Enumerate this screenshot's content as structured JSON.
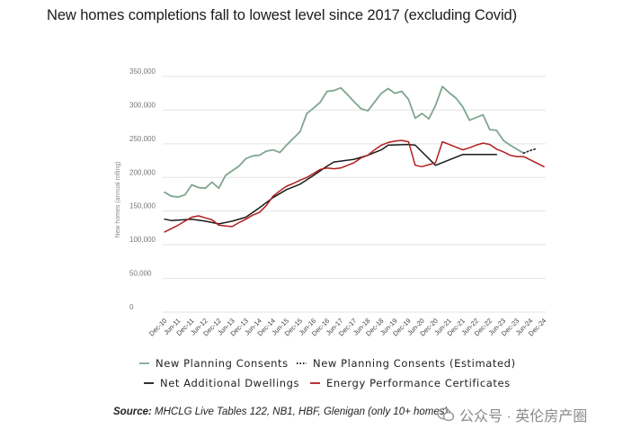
{
  "title": "New homes completions fall to lowest level since 2017 (excluding Covid)",
  "source": {
    "label": "Source:",
    "text": "MHCLG Live Tables 122, NB1, HBF, Glenigan (only 10+ homes)"
  },
  "watermark": "公众号 · 英伦房产圈",
  "colors": {
    "planning": "#7fa68f",
    "estimated": "#222222",
    "dwellings": "#1a1a1a",
    "epc": "#b01e1e",
    "grid": "#e3e3e3"
  },
  "chart_data": {
    "type": "line",
    "ylabel": "New homes (annual rolling)",
    "ylim": [
      0,
      350000
    ],
    "yticks": [
      "0",
      "50,000",
      "100,000",
      "150,000",
      "200,000",
      "250,000",
      "300,000",
      "350,000"
    ],
    "x_labels": [
      "Dec-10",
      "Jun-11",
      "Dec-11",
      "Jun-12",
      "Dec-12",
      "Jun-13",
      "Dec-13",
      "Jun-14",
      "Dec-14",
      "Jun-15",
      "Dec-15",
      "Jun-16",
      "Dec-16",
      "Jun-17",
      "Dec-17",
      "Jun-18",
      "Dec-18",
      "Jun-19",
      "Dec-19",
      "Jun-20",
      "Dec-20",
      "Jun-21",
      "Dec-21",
      "Jun-22",
      "Dec-22",
      "Jun-23",
      "Dec-23",
      "Jun-24",
      "Dec-24"
    ],
    "x_start": 2010.917,
    "x_end": 2024.917,
    "legend": [
      {
        "name": "New Planning Consents",
        "style": "solid-green"
      },
      {
        "name": "New Planning Consents (Estimated)",
        "style": "dotted-black"
      },
      {
        "name": "Net Additional Dwellings",
        "style": "solid-black"
      },
      {
        "name": "Energy Performance Certificates",
        "style": "solid-red"
      }
    ],
    "series": [
      {
        "name": "New Planning Consents",
        "points": [
          [
            2010.92,
            178000
          ],
          [
            2011.17,
            172000
          ],
          [
            2011.42,
            171000
          ],
          [
            2011.67,
            174000
          ],
          [
            2011.92,
            189000
          ],
          [
            2012.17,
            185000
          ],
          [
            2012.42,
            184000
          ],
          [
            2012.67,
            193000
          ],
          [
            2012.92,
            184000
          ],
          [
            2013.17,
            203000
          ],
          [
            2013.42,
            210000
          ],
          [
            2013.67,
            217000
          ],
          [
            2013.92,
            228000
          ],
          [
            2014.17,
            232000
          ],
          [
            2014.42,
            233000
          ],
          [
            2014.67,
            239000
          ],
          [
            2014.92,
            241000
          ],
          [
            2015.17,
            237000
          ],
          [
            2015.42,
            248000
          ],
          [
            2015.67,
            258000
          ],
          [
            2015.92,
            268000
          ],
          [
            2016.17,
            295000
          ],
          [
            2016.42,
            303000
          ],
          [
            2016.67,
            312000
          ],
          [
            2016.92,
            328000
          ],
          [
            2017.17,
            329000
          ],
          [
            2017.42,
            333000
          ],
          [
            2017.67,
            323000
          ],
          [
            2017.92,
            312000
          ],
          [
            2018.17,
            302000
          ],
          [
            2018.42,
            299000
          ],
          [
            2018.67,
            312000
          ],
          [
            2018.92,
            325000
          ],
          [
            2019.17,
            332000
          ],
          [
            2019.42,
            325000
          ],
          [
            2019.67,
            328000
          ],
          [
            2019.92,
            316000
          ],
          [
            2020.17,
            288000
          ],
          [
            2020.42,
            295000
          ],
          [
            2020.67,
            287000
          ],
          [
            2020.92,
            307000
          ],
          [
            2021.17,
            335000
          ],
          [
            2021.42,
            326000
          ],
          [
            2021.67,
            318000
          ],
          [
            2021.92,
            305000
          ],
          [
            2022.17,
            285000
          ],
          [
            2022.42,
            289000
          ],
          [
            2022.67,
            293000
          ],
          [
            2022.92,
            271000
          ],
          [
            2023.17,
            270000
          ],
          [
            2023.42,
            255000
          ],
          [
            2023.67,
            248000
          ],
          [
            2023.92,
            242000
          ],
          [
            2024.17,
            236000
          ]
        ]
      },
      {
        "name": "New Planning Consents (Estimated)",
        "points": [
          [
            2024.17,
            236000
          ],
          [
            2024.42,
            240000
          ],
          [
            2024.67,
            243000
          ]
        ]
      },
      {
        "name": "Net Additional Dwellings",
        "points": [
          [
            2010.92,
            138000
          ],
          [
            2011.17,
            136000
          ],
          [
            2011.92,
            138000
          ],
          [
            2012.42,
            135000
          ],
          [
            2012.92,
            131000
          ],
          [
            2013.42,
            135000
          ],
          [
            2013.92,
            141000
          ],
          [
            2014.42,
            155000
          ],
          [
            2014.92,
            170000
          ],
          [
            2015.42,
            182000
          ],
          [
            2015.92,
            190000
          ],
          [
            2016.42,
            203000
          ],
          [
            2016.92,
            217000
          ],
          [
            2017.17,
            223000
          ],
          [
            2017.92,
            227000
          ],
          [
            2018.42,
            233000
          ],
          [
            2018.92,
            241000
          ],
          [
            2019.17,
            248000
          ],
          [
            2019.92,
            249000
          ],
          [
            2020.17,
            248000
          ],
          [
            2020.92,
            218000
          ],
          [
            2021.42,
            226000
          ],
          [
            2021.92,
            234000
          ],
          [
            2022.42,
            234000
          ],
          [
            2022.92,
            234000
          ],
          [
            2023.17,
            234000
          ]
        ]
      },
      {
        "name": "Energy Performance Certificates",
        "points": [
          [
            2010.92,
            119000
          ],
          [
            2011.17,
            124000
          ],
          [
            2011.42,
            129000
          ],
          [
            2011.67,
            135000
          ],
          [
            2011.92,
            141000
          ],
          [
            2012.17,
            143000
          ],
          [
            2012.42,
            140000
          ],
          [
            2012.67,
            137000
          ],
          [
            2012.92,
            129000
          ],
          [
            2013.17,
            128000
          ],
          [
            2013.42,
            127000
          ],
          [
            2013.67,
            133000
          ],
          [
            2013.92,
            138000
          ],
          [
            2014.17,
            144000
          ],
          [
            2014.42,
            148000
          ],
          [
            2014.67,
            158000
          ],
          [
            2014.92,
            172000
          ],
          [
            2015.17,
            180000
          ],
          [
            2015.42,
            187000
          ],
          [
            2015.67,
            191000
          ],
          [
            2015.92,
            196000
          ],
          [
            2016.17,
            200000
          ],
          [
            2016.42,
            206000
          ],
          [
            2016.67,
            212000
          ],
          [
            2016.92,
            214000
          ],
          [
            2017.17,
            213000
          ],
          [
            2017.42,
            214000
          ],
          [
            2017.67,
            218000
          ],
          [
            2017.92,
            222000
          ],
          [
            2018.17,
            229000
          ],
          [
            2018.42,
            233000
          ],
          [
            2018.67,
            241000
          ],
          [
            2018.92,
            248000
          ],
          [
            2019.17,
            252000
          ],
          [
            2019.42,
            254000
          ],
          [
            2019.67,
            255000
          ],
          [
            2019.92,
            253000
          ],
          [
            2020.17,
            218000
          ],
          [
            2020.42,
            216000
          ],
          [
            2020.67,
            219000
          ],
          [
            2020.92,
            222000
          ],
          [
            2021.17,
            253000
          ],
          [
            2021.42,
            249000
          ],
          [
            2021.67,
            245000
          ],
          [
            2021.92,
            241000
          ],
          [
            2022.17,
            244000
          ],
          [
            2022.42,
            248000
          ],
          [
            2022.67,
            251000
          ],
          [
            2022.92,
            249000
          ],
          [
            2023.17,
            242000
          ],
          [
            2023.42,
            238000
          ],
          [
            2023.67,
            233000
          ],
          [
            2023.92,
            231000
          ],
          [
            2024.17,
            231000
          ],
          [
            2024.42,
            226000
          ],
          [
            2024.67,
            221000
          ],
          [
            2024.92,
            216000
          ]
        ]
      }
    ]
  }
}
